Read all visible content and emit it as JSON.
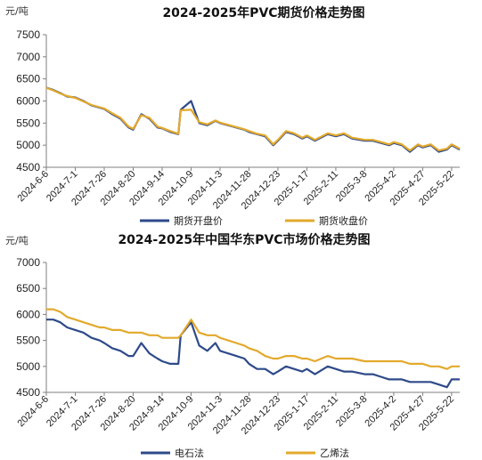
{
  "chart_data": [
    {
      "type": "line",
      "title": "2024-2025年PVC期货价格走势图",
      "unit": "元/吨",
      "ylim": [
        4500,
        7500
      ],
      "yticks": [
        4500,
        5000,
        5500,
        6000,
        6500,
        7000,
        7500
      ],
      "x_labels": [
        "2024-6-6",
        "2024-7-1",
        "2024-7-26",
        "2024-8-20",
        "2024-9-14",
        "2024-10-9",
        "2024-11-3",
        "2024-11-28",
        "2024-12-23",
        "2025-1-17",
        "2025-2-11",
        "2025-3-8",
        "2025-4-2",
        "2025-4-27",
        "2025-5-22"
      ],
      "x": [
        "2024-6-6",
        "2024-6-12",
        "2024-6-18",
        "2024-6-24",
        "2024-7-1",
        "2024-7-8",
        "2024-7-15",
        "2024-7-22",
        "2024-7-26",
        "2024-8-2",
        "2024-8-9",
        "2024-8-16",
        "2024-8-20",
        "2024-8-27",
        "2024-9-3",
        "2024-9-10",
        "2024-9-14",
        "2024-9-21",
        "2024-9-28",
        "2024-9-30",
        "2024-10-9",
        "2024-10-16",
        "2024-10-23",
        "2024-10-30",
        "2024-11-3",
        "2024-11-10",
        "2024-11-17",
        "2024-11-24",
        "2024-11-28",
        "2024-12-5",
        "2024-12-12",
        "2024-12-19",
        "2024-12-23",
        "2024-12-30",
        "2025-1-6",
        "2025-1-13",
        "2025-1-17",
        "2025-1-24",
        "2025-2-4",
        "2025-2-11",
        "2025-2-18",
        "2025-2-25",
        "2025-3-8",
        "2025-3-15",
        "2025-3-22",
        "2025-3-29",
        "2025-4-2",
        "2025-4-9",
        "2025-4-16",
        "2025-4-23",
        "2025-4-27",
        "2025-5-4",
        "2025-5-11",
        "2025-5-18",
        "2025-5-22",
        "2025-5-29"
      ],
      "series": [
        {
          "name": "期货开盘价",
          "color": "#2e4a8a",
          "values": [
            6300,
            6250,
            6180,
            6100,
            6080,
            6000,
            5900,
            5850,
            5820,
            5700,
            5600,
            5400,
            5350,
            5700,
            5600,
            5400,
            5380,
            5300,
            5250,
            5800,
            6000,
            5500,
            5450,
            5550,
            5500,
            5450,
            5400,
            5350,
            5300,
            5250,
            5200,
            5000,
            5100,
            5300,
            5250,
            5150,
            5200,
            5100,
            5250,
            5200,
            5250,
            5150,
            5100,
            5100,
            5050,
            5000,
            5050,
            5000,
            4850,
            5000,
            4950,
            5000,
            4850,
            4900,
            5000,
            4900
          ]
        },
        {
          "name": "期货收盘价",
          "color": "#e3a92c",
          "values": [
            6300,
            6240,
            6170,
            6110,
            6070,
            5990,
            5910,
            5860,
            5830,
            5720,
            5620,
            5420,
            5370,
            5680,
            5620,
            5420,
            5390,
            5320,
            5260,
            5790,
            5800,
            5520,
            5470,
            5560,
            5510,
            5460,
            5410,
            5360,
            5320,
            5260,
            5220,
            5020,
            5120,
            5320,
            5270,
            5170,
            5220,
            5120,
            5270,
            5220,
            5270,
            5170,
            5120,
            5120,
            5070,
            5020,
            5070,
            5020,
            4880,
            5020,
            4970,
            5020,
            4880,
            4920,
            5020,
            4920
          ]
        }
      ]
    },
    {
      "type": "line",
      "title": "2024-2025年中国华东PVC市场价格走势图",
      "unit": "元/吨",
      "ylim": [
        4500,
        7000
      ],
      "yticks": [
        4500,
        5000,
        5500,
        6000,
        6500,
        7000
      ],
      "x_labels": [
        "2024-6-6",
        "2024-7-1",
        "2024-7-26",
        "2024-8-20",
        "2024-9-14",
        "2024-10-9",
        "2024-11-3",
        "2024-11-28",
        "2024-12-23",
        "2025-1-17",
        "2025-2-11",
        "2025-3-8",
        "2025-4-2",
        "2025-4-27",
        "2025-5-22"
      ],
      "x": [
        "2024-6-6",
        "2024-6-12",
        "2024-6-18",
        "2024-6-24",
        "2024-7-1",
        "2024-7-8",
        "2024-7-15",
        "2024-7-22",
        "2024-7-26",
        "2024-8-2",
        "2024-8-9",
        "2024-8-16",
        "2024-8-20",
        "2024-8-27",
        "2024-9-3",
        "2024-9-10",
        "2024-9-14",
        "2024-9-21",
        "2024-9-28",
        "2024-9-30",
        "2024-10-9",
        "2024-10-16",
        "2024-10-23",
        "2024-10-30",
        "2024-11-3",
        "2024-11-10",
        "2024-11-17",
        "2024-11-24",
        "2024-11-28",
        "2024-12-5",
        "2024-12-12",
        "2024-12-19",
        "2024-12-23",
        "2024-12-30",
        "2025-1-6",
        "2025-1-13",
        "2025-1-17",
        "2025-1-24",
        "2025-2-4",
        "2025-2-11",
        "2025-2-18",
        "2025-2-25",
        "2025-3-8",
        "2025-3-15",
        "2025-3-22",
        "2025-3-29",
        "2025-4-2",
        "2025-4-9",
        "2025-4-16",
        "2025-4-23",
        "2025-4-27",
        "2025-5-4",
        "2025-5-11",
        "2025-5-18",
        "2025-5-22",
        "2025-5-29"
      ],
      "series": [
        {
          "name": "电石法",
          "color": "#2e4a8a",
          "values": [
            5900,
            5900,
            5850,
            5750,
            5700,
            5650,
            5550,
            5500,
            5450,
            5350,
            5300,
            5200,
            5200,
            5450,
            5250,
            5150,
            5100,
            5050,
            5050,
            5600,
            5850,
            5400,
            5300,
            5450,
            5300,
            5250,
            5200,
            5150,
            5050,
            4950,
            4950,
            4850,
            4900,
            5000,
            4950,
            4900,
            4950,
            4850,
            5000,
            4950,
            4900,
            4900,
            4850,
            4850,
            4800,
            4750,
            4750,
            4750,
            4700,
            4700,
            4700,
            4700,
            4650,
            4600,
            4750,
            4750
          ]
        },
        {
          "name": "乙烯法",
          "color": "#e3a92c",
          "values": [
            6100,
            6100,
            6050,
            5950,
            5900,
            5850,
            5800,
            5750,
            5750,
            5700,
            5700,
            5650,
            5650,
            5650,
            5600,
            5600,
            5550,
            5550,
            5550,
            5600,
            5900,
            5650,
            5600,
            5600,
            5550,
            5500,
            5450,
            5400,
            5350,
            5300,
            5200,
            5150,
            5150,
            5200,
            5200,
            5150,
            5150,
            5100,
            5200,
            5150,
            5150,
            5150,
            5100,
            5100,
            5100,
            5100,
            5100,
            5100,
            5050,
            5050,
            5050,
            5000,
            5000,
            4950,
            5000,
            5000
          ]
        }
      ]
    }
  ]
}
